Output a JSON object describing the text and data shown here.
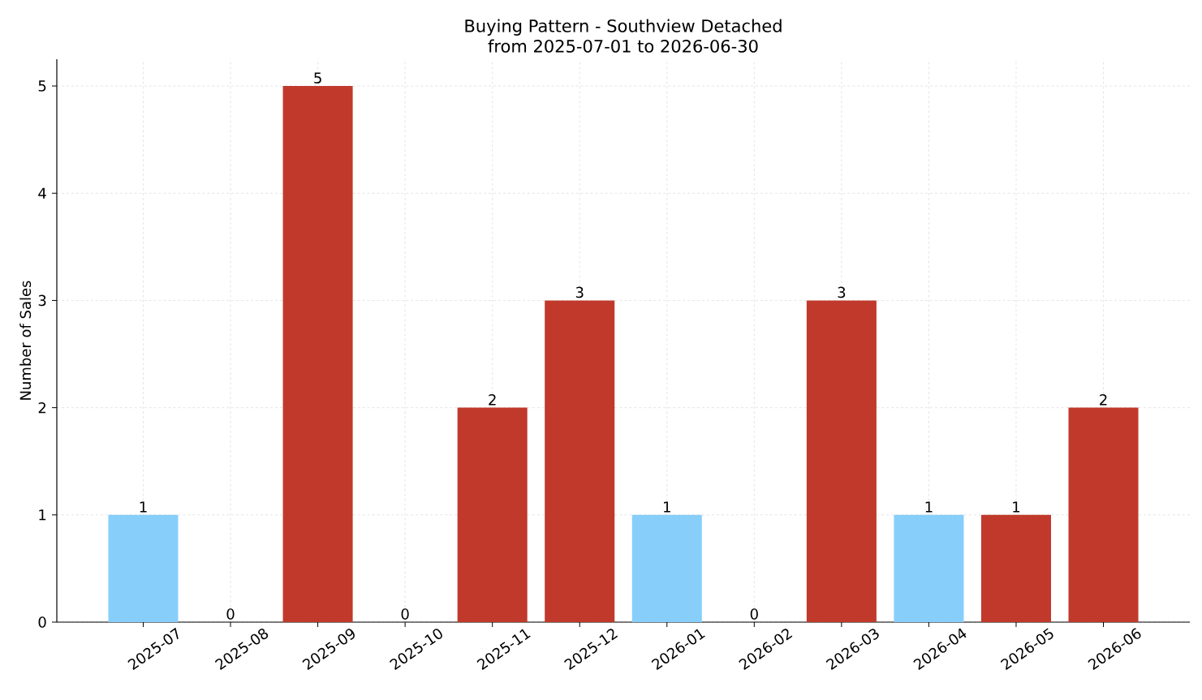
{
  "chart_data": {
    "type": "bar",
    "title": "Buying Pattern - Southview Detached",
    "subtitle": "from 2025-07-01 to 2026-06-30",
    "ylabel": "Number of Sales",
    "categories": [
      "2025-07",
      "2025-08",
      "2025-09",
      "2025-10",
      "2025-11",
      "2025-12",
      "2026-01",
      "2026-02",
      "2026-03",
      "2026-04",
      "2026-05",
      "2026-06"
    ],
    "values": [
      1,
      0,
      5,
      0,
      2,
      3,
      1,
      0,
      3,
      1,
      1,
      2
    ],
    "colors": [
      "#87cefa",
      "#c0392b",
      "#c0392b",
      "#c0392b",
      "#c0392b",
      "#c0392b",
      "#87cefa",
      "#c0392b",
      "#c0392b",
      "#87cefa",
      "#c0392b",
      "#c0392b"
    ],
    "ylim": [
      0,
      5.25
    ],
    "yticks": [
      0,
      1,
      2,
      3,
      4,
      5
    ],
    "grid": true,
    "data_labels": true
  }
}
